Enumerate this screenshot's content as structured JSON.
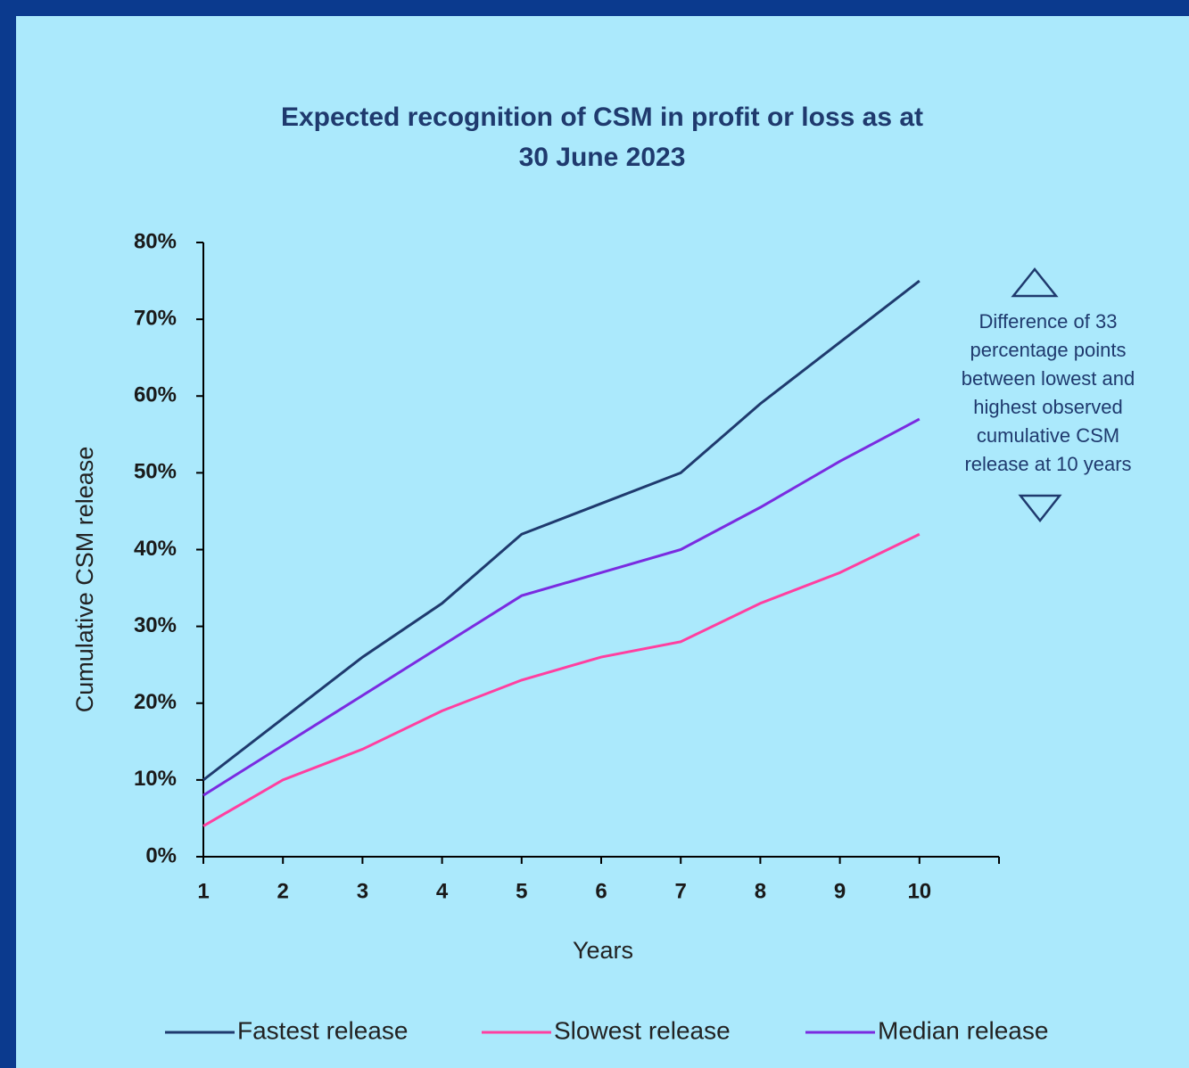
{
  "chart_data": {
    "type": "line",
    "title": [
      "Expected recognition of CSM in profit or loss as at",
      "30 June 2023"
    ],
    "x_label": "Years",
    "y_label": "Cumulative CSM release",
    "x": [
      1,
      2,
      3,
      4,
      5,
      6,
      7,
      8,
      9,
      10
    ],
    "xlim": [
      1,
      11
    ],
    "xticks": [
      1,
      2,
      3,
      4,
      5,
      6,
      7,
      8,
      9,
      10
    ],
    "ylim": [
      0,
      80
    ],
    "yticks": [
      {
        "value": 0,
        "label": "0%"
      },
      {
        "value": 10,
        "label": "10%"
      },
      {
        "value": 20,
        "label": "20%"
      },
      {
        "value": 30,
        "label": "30%"
      },
      {
        "value": 40,
        "label": "40%"
      },
      {
        "value": 50,
        "label": "50%"
      },
      {
        "value": 60,
        "label": "60%"
      },
      {
        "value": 70,
        "label": "70%"
      },
      {
        "value": 80,
        "label": "80%"
      }
    ],
    "series": [
      {
        "name": "Fastest release",
        "color": "#1f3a6e",
        "values": [
          10,
          18,
          26,
          33,
          42,
          46,
          50,
          59,
          67,
          75
        ]
      },
      {
        "name": "Slowest release",
        "color": "#ff3fa0",
        "values": [
          4,
          10,
          14,
          19,
          23,
          26,
          28,
          33,
          37,
          42
        ]
      },
      {
        "name": "Median release",
        "color": "#7a2be0",
        "values": [
          8,
          14.5,
          21,
          27.5,
          34,
          37,
          40,
          45.5,
          51.5,
          57
        ]
      }
    ],
    "annotation": [
      "Difference of 33",
      "percentage points",
      "between lowest and",
      "highest observed",
      "cumulative CSM",
      "release at 10 years"
    ],
    "legend": "bottom"
  }
}
